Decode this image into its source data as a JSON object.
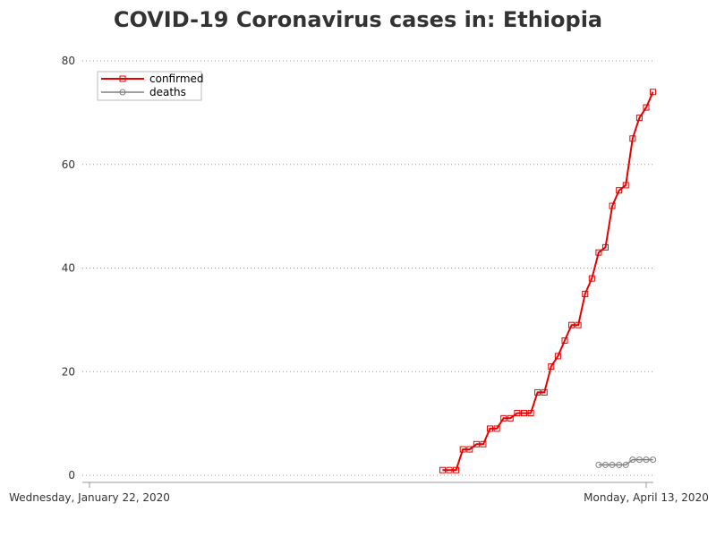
{
  "chart_data": {
    "type": "line",
    "title": "COVID-19 Coronavirus cases in: Ethiopia",
    "x_start_label": "Wednesday, January 22, 2020",
    "x_end_label": "Monday, April 13, 2020",
    "x_range": [
      "2020-01-22",
      "2020-04-13"
    ],
    "ylim": [
      0,
      80
    ],
    "yticks": [
      0,
      20,
      40,
      60,
      80
    ],
    "grid": "horizontal dotted",
    "legend_position": "top-left",
    "series": [
      {
        "name": "confirmed",
        "color": "#e60000",
        "marker": "square",
        "points": [
          [
            "2020-03-14",
            1
          ],
          [
            "2020-03-15",
            1
          ],
          [
            "2020-03-16",
            1
          ],
          [
            "2020-03-17",
            5
          ],
          [
            "2020-03-18",
            5
          ],
          [
            "2020-03-19",
            6
          ],
          [
            "2020-03-20",
            6
          ],
          [
            "2020-03-21",
            9
          ],
          [
            "2020-03-22",
            9
          ],
          [
            "2020-03-23",
            11
          ],
          [
            "2020-03-24",
            11
          ],
          [
            "2020-03-25",
            12
          ],
          [
            "2020-03-26",
            12
          ],
          [
            "2020-03-27",
            12
          ],
          [
            "2020-03-28",
            16
          ],
          [
            "2020-03-29",
            16
          ],
          [
            "2020-03-30",
            21
          ],
          [
            "2020-03-31",
            23
          ],
          [
            "2020-04-01",
            26
          ],
          [
            "2020-04-02",
            29
          ],
          [
            "2020-04-03",
            29
          ],
          [
            "2020-04-04",
            35
          ],
          [
            "2020-04-05",
            38
          ],
          [
            "2020-04-06",
            43
          ],
          [
            "2020-04-07",
            44
          ],
          [
            "2020-04-08",
            52
          ],
          [
            "2020-04-09",
            55
          ],
          [
            "2020-04-10",
            56
          ],
          [
            "2020-04-11",
            65
          ],
          [
            "2020-04-12",
            69
          ],
          [
            "2020-04-13",
            71
          ],
          [
            "2020-04-14",
            74
          ]
        ]
      },
      {
        "name": "deaths",
        "color": "#808080",
        "marker": "circle",
        "points": [
          [
            "2020-04-06",
            2
          ],
          [
            "2020-04-07",
            2
          ],
          [
            "2020-04-08",
            2
          ],
          [
            "2020-04-09",
            2
          ],
          [
            "2020-04-10",
            2
          ],
          [
            "2020-04-11",
            3
          ],
          [
            "2020-04-12",
            3
          ],
          [
            "2020-04-13",
            3
          ],
          [
            "2020-04-14",
            3
          ]
        ]
      }
    ]
  }
}
